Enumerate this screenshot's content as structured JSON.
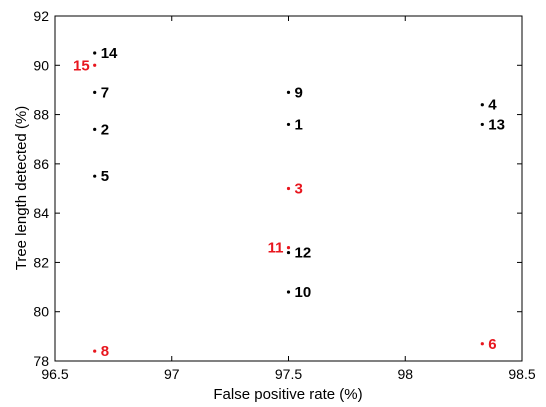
{
  "chart_data": {
    "type": "scatter",
    "title": "",
    "xlabel": "False positive rate (%)",
    "ylabel": "Tree length detected (%)",
    "xlim": [
      96.5,
      98.5
    ],
    "ylim": [
      78,
      92
    ],
    "xticks": [
      "96.5",
      "97",
      "97.5",
      "98",
      "98.5"
    ],
    "yticks": [
      "78",
      "80",
      "82",
      "84",
      "86",
      "88",
      "90",
      "92"
    ],
    "grid": false,
    "label_colors": {
      "normal": "#000000",
      "highlight": "#e8161e"
    },
    "points": [
      {
        "label": "1",
        "x": 97.5,
        "y": 87.6,
        "color": "#000000",
        "label_side": "right"
      },
      {
        "label": "2",
        "x": 96.67,
        "y": 87.4,
        "color": "#000000",
        "label_side": "right"
      },
      {
        "label": "3",
        "x": 97.5,
        "y": 85.0,
        "color": "#e8161e",
        "label_side": "right"
      },
      {
        "label": "4",
        "x": 98.33,
        "y": 88.4,
        "color": "#000000",
        "label_side": "right"
      },
      {
        "label": "5",
        "x": 96.67,
        "y": 85.5,
        "color": "#000000",
        "label_side": "right"
      },
      {
        "label": "6",
        "x": 98.33,
        "y": 78.7,
        "color": "#e8161e",
        "label_side": "right"
      },
      {
        "label": "7",
        "x": 96.67,
        "y": 88.9,
        "color": "#000000",
        "label_side": "right"
      },
      {
        "label": "8",
        "x": 96.67,
        "y": 78.4,
        "color": "#e8161e",
        "label_side": "right"
      },
      {
        "label": "9",
        "x": 97.5,
        "y": 88.9,
        "color": "#000000",
        "label_side": "right"
      },
      {
        "label": "10",
        "x": 97.5,
        "y": 80.8,
        "color": "#000000",
        "label_side": "right"
      },
      {
        "label": "11",
        "x": 97.5,
        "y": 82.6,
        "color": "#e8161e",
        "label_side": "left"
      },
      {
        "label": "12",
        "x": 97.5,
        "y": 82.4,
        "color": "#000000",
        "label_side": "right"
      },
      {
        "label": "13",
        "x": 98.33,
        "y": 87.6,
        "color": "#000000",
        "label_side": "right"
      },
      {
        "label": "14",
        "x": 96.67,
        "y": 90.5,
        "color": "#000000",
        "label_side": "right"
      },
      {
        "label": "15",
        "x": 96.67,
        "y": 90.0,
        "color": "#e8161e",
        "label_side": "left"
      }
    ]
  }
}
